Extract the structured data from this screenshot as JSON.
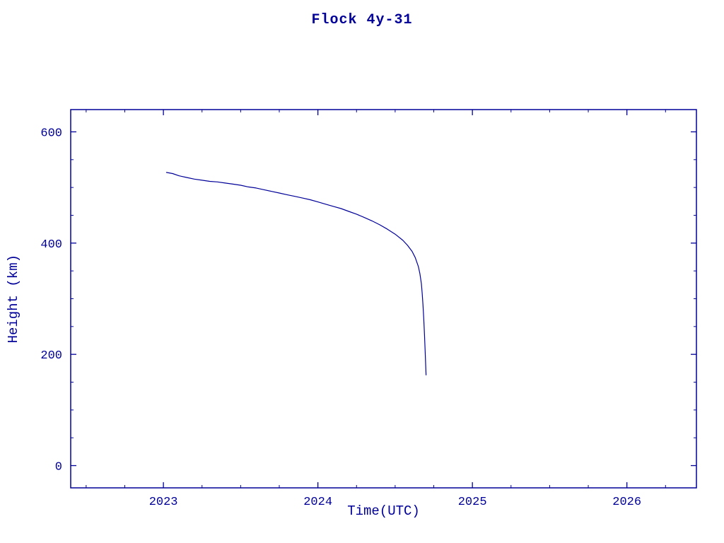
{
  "chart_data": {
    "type": "line",
    "title": "Flock 4y-31",
    "xlabel": "Time(UTC)",
    "ylabel": "Height (km)",
    "color": "#000099",
    "grid": false,
    "legend": "none",
    "xlim": [
      2022.4,
      2026.45
    ],
    "ylim": [
      -40,
      640
    ],
    "xticks": [
      2023,
      2024,
      2025,
      2026
    ],
    "yticks": [
      0,
      200,
      400,
      600
    ],
    "x_minor_step": 0.25,
    "y_minor_step": 50,
    "series": [
      {
        "name": "Flock 4y-31 height",
        "x": [
          2023.02,
          2023.06,
          2023.1,
          2023.15,
          2023.2,
          2023.25,
          2023.3,
          2023.35,
          2023.4,
          2023.45,
          2023.5,
          2023.55,
          2023.6,
          2023.65,
          2023.7,
          2023.75,
          2023.8,
          2023.85,
          2023.9,
          2023.95,
          2024.0,
          2024.05,
          2024.1,
          2024.15,
          2024.2,
          2024.25,
          2024.3,
          2024.35,
          2024.4,
          2024.45,
          2024.5,
          2024.55,
          2024.58,
          2024.61,
          2024.63,
          2024.65,
          2024.66,
          2024.67,
          2024.675,
          2024.68,
          2024.685,
          2024.69,
          2024.695,
          2024.7
        ],
        "y": [
          527,
          525,
          521,
          518,
          515,
          513,
          511,
          510,
          508,
          506,
          504,
          501,
          499,
          496,
          493,
          490,
          487,
          484,
          481,
          478,
          474,
          470,
          466,
          462,
          457,
          452,
          446,
          440,
          433,
          425,
          416,
          405,
          396,
          385,
          374,
          358,
          345,
          327,
          310,
          290,
          265,
          235,
          200,
          163
        ]
      }
    ]
  }
}
